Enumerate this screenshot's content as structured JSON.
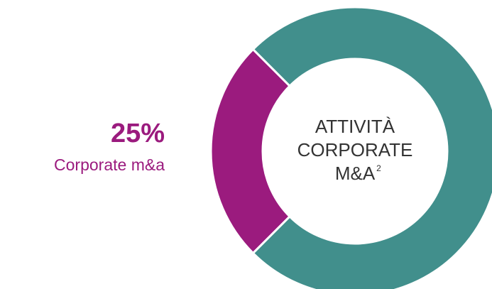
{
  "chart_data": {
    "type": "donut",
    "categories": [
      "Corporate m&a",
      null
    ],
    "values": [
      25,
      75
    ],
    "value_labels": [
      "25%",
      null
    ],
    "colors": [
      "#9b1b7e",
      "#418f8c"
    ],
    "center_label": [
      "ATTIVITÀ",
      "CORPORATE",
      "M&A"
    ],
    "center_label_note": "2"
  }
}
